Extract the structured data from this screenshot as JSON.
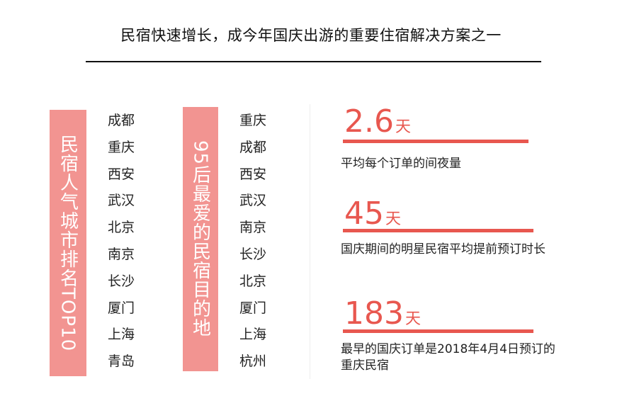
{
  "title": "民宿快速增长，成今年国庆出游的重要住宿解决方案之一",
  "box1": {
    "label": "民宿人气城市排名TOP10",
    "cities": [
      "成都",
      "重庆",
      "西安",
      "武汉",
      "北京",
      "南京",
      "长沙",
      "厦门",
      "上海",
      "青岛"
    ]
  },
  "box2": {
    "label": "95后最爱的民宿目的地",
    "cities": [
      "重庆",
      "成都",
      "西安",
      "武汉",
      "南京",
      "长沙",
      "北京",
      "厦门",
      "上海",
      "杭州"
    ]
  },
  "stats": [
    {
      "value": "2.6",
      "unit": "天",
      "desc": "平均每个订单的间夜量"
    },
    {
      "value": "45",
      "unit": "天",
      "desc": "国庆期间的明星民宿平均提前预订时长"
    },
    {
      "value": "183",
      "unit": "天",
      "desc": "最早的国庆订单是2018年4月4日预订的重庆民宿"
    }
  ],
  "colors": {
    "accent": "#e8574f",
    "label_box": "#f29491"
  }
}
